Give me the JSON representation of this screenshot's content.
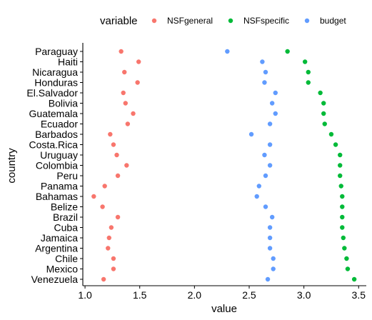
{
  "chart_data": {
    "type": "scatter",
    "title": "",
    "xlabel": "value",
    "ylabel": "country",
    "xlim": [
      0.98,
      3.57
    ],
    "x_ticks": [
      1.0,
      1.5,
      2.0,
      2.5,
      3.0,
      3.5
    ],
    "x_tick_labels": [
      "1.0",
      "1.5",
      "2.0",
      "2.5",
      "3.0",
      "3.5"
    ],
    "grid": false,
    "legend_position": "top",
    "legend_title": "variable",
    "categories": [
      "Paraguay",
      "Haiti",
      "Nicaragua",
      "Honduras",
      "El.Salvador",
      "Bolivia",
      "Guatemala",
      "Ecuador",
      "Barbados",
      "Costa.Rica",
      "Uruguay",
      "Colombia",
      "Peru",
      "Panama",
      "Bahamas",
      "Belize",
      "Brazil",
      "Cuba",
      "Jamaica",
      "Argentina",
      "Chile",
      "Mexico",
      "Venezuela"
    ],
    "series": [
      {
        "name": "NSFgeneral",
        "color": "#F8766D",
        "values": [
          1.33,
          1.49,
          1.36,
          1.48,
          1.35,
          1.37,
          1.44,
          1.39,
          1.23,
          1.26,
          1.29,
          1.38,
          1.3,
          1.18,
          1.08,
          1.16,
          1.3,
          1.24,
          1.22,
          1.21,
          1.26,
          1.26,
          1.17
        ]
      },
      {
        "name": "NSFspecific",
        "color": "#00BA38",
        "values": [
          2.85,
          3.01,
          3.04,
          3.04,
          3.15,
          3.18,
          3.18,
          3.19,
          3.25,
          3.29,
          3.33,
          3.33,
          3.33,
          3.34,
          3.35,
          3.35,
          3.35,
          3.35,
          3.36,
          3.37,
          3.39,
          3.4,
          3.46
        ]
      },
      {
        "name": "budget",
        "color": "#619CFF",
        "values": [
          2.3,
          2.62,
          2.65,
          2.64,
          2.74,
          2.71,
          2.74,
          2.69,
          2.52,
          2.69,
          2.64,
          2.69,
          2.65,
          2.59,
          2.57,
          2.65,
          2.71,
          2.69,
          2.69,
          2.69,
          2.72,
          2.72,
          2.67
        ]
      }
    ]
  }
}
